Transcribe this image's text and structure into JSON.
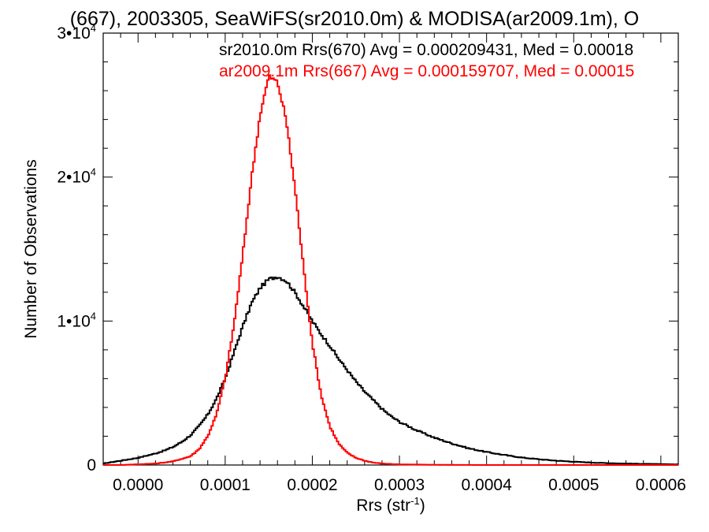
{
  "chart_data": {
    "type": "line",
    "title": "(667), 2003305, SeaWiFS(sr2010.0m) & MODISA(ar2009.1m), O",
    "xlabel": "Rrs (str",
    "xlabel_sup": "-1",
    "xlabel_end": ")",
    "ylabel": "Number of Observations",
    "xlim": [
      -4e-05,
      0.00062
    ],
    "ylim": [
      0,
      30000
    ],
    "x_ticks": [
      {
        "value": 0.0,
        "label": "0.0000"
      },
      {
        "value": 0.0001,
        "label": "0.0001"
      },
      {
        "value": 0.0002,
        "label": "0.0002"
      },
      {
        "value": 0.0003,
        "label": "0.0003"
      },
      {
        "value": 0.0004,
        "label": "0.0004"
      },
      {
        "value": 0.0005,
        "label": "0.0005"
      },
      {
        "value": 0.0006,
        "label": "0.0006"
      }
    ],
    "y_ticks": [
      {
        "value": 0,
        "label": "0",
        "sup": ""
      },
      {
        "value": 10000,
        "label": "1•10",
        "sup": "4"
      },
      {
        "value": 20000,
        "label": "2•10",
        "sup": "4"
      },
      {
        "value": 30000,
        "label": "3•10",
        "sup": "4"
      }
    ],
    "annotations": [
      {
        "text": "sr2010.0m Rrs(670) Avg = 0.000209431, Med = 0.00018",
        "color": "#000000"
      },
      {
        "text": "ar2009.1m Rrs(667) Avg = 0.000159707, Med = 0.00015",
        "color": "#ff0000"
      }
    ],
    "series": [
      {
        "name": "sr2010.0m Rrs(670)",
        "color": "#000000",
        "x": [
          -4e-05,
          -3e-05,
          -2e-05,
          -1e-05,
          0.0,
          1e-05,
          2e-05,
          3e-05,
          4e-05,
          5e-05,
          6e-05,
          7e-05,
          8e-05,
          9e-05,
          0.0001,
          0.00011,
          0.00012,
          0.00013,
          0.00014,
          0.00015,
          0.00016,
          0.00017,
          0.00018,
          0.00019,
          0.0002,
          0.00021,
          0.00022,
          0.00023,
          0.00024,
          0.00025,
          0.00026,
          0.00027,
          0.00028,
          0.00029,
          0.0003,
          0.00032,
          0.00034,
          0.00036,
          0.00038,
          0.0004,
          0.00042,
          0.00044,
          0.00046,
          0.00048,
          0.0005,
          0.00052,
          0.00054,
          0.00056,
          0.00058,
          0.0006,
          0.00062
        ],
        "y": [
          100,
          200,
          300,
          400,
          500,
          650,
          800,
          1000,
          1250,
          1600,
          2050,
          2700,
          3500,
          4600,
          6000,
          7800,
          9600,
          11200,
          12300,
          12900,
          13100,
          12800,
          12000,
          11000,
          10000,
          9100,
          8300,
          7400,
          6600,
          5800,
          5100,
          4500,
          3900,
          3400,
          3000,
          2400,
          1900,
          1500,
          1150,
          900,
          700,
          520,
          400,
          300,
          230,
          170,
          130,
          100,
          80,
          60,
          40
        ]
      },
      {
        "name": "ar2009.1m Rrs(667)",
        "color": "#ff0000",
        "x": [
          -4e-05,
          -2e-05,
          0.0,
          2e-05,
          4e-05,
          6e-05,
          7e-05,
          8e-05,
          9e-05,
          0.0001,
          0.00011,
          0.00012,
          0.00013,
          0.00014,
          0.00015,
          0.00016,
          0.00017,
          0.00018,
          0.00019,
          0.0002,
          0.00021,
          0.00022,
          0.00023,
          0.00024,
          0.00025,
          0.00026,
          0.00027,
          0.00028,
          0.0003,
          0.00035,
          0.0004,
          0.0005,
          0.00062
        ],
        "y": [
          0,
          0,
          50,
          100,
          250,
          600,
          1100,
          2000,
          3500,
          6000,
          9700,
          14500,
          19800,
          24300,
          27000,
          26600,
          24000,
          19300,
          13700,
          8500,
          4900,
          2700,
          1500,
          850,
          500,
          300,
          170,
          100,
          40,
          10,
          0,
          0,
          0
        ]
      }
    ]
  }
}
